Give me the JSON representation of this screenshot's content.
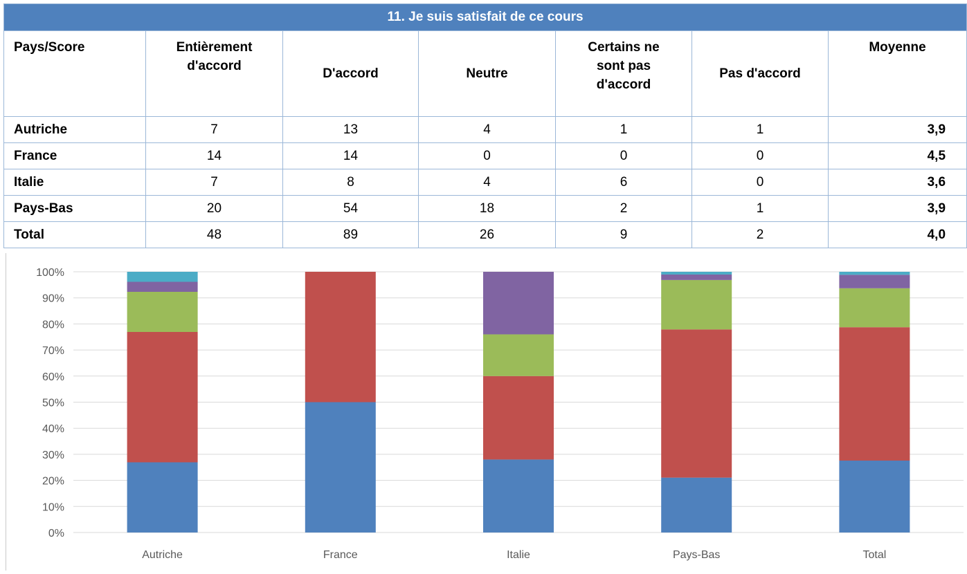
{
  "table": {
    "title": "11. Je suis satisfait de ce cours",
    "headers": [
      "Pays/Score",
      "Entièrement\nd'accord",
      "D'accord",
      "Neutre",
      "Certains ne\nsont pas\nd'accord",
      "Pas d'accord",
      "Moyenne"
    ],
    "rows": [
      {
        "country": "Autriche",
        "values": [
          "7",
          "13",
          "4",
          "1",
          "1"
        ],
        "avg": "3,9"
      },
      {
        "country": "France",
        "values": [
          "14",
          "14",
          "0",
          "0",
          "0"
        ],
        "avg": "4,5"
      },
      {
        "country": "Italie",
        "values": [
          "7",
          "8",
          "4",
          "6",
          "0"
        ],
        "avg": "3,6"
      },
      {
        "country": "Pays-Bas",
        "values": [
          "20",
          "54",
          "18",
          "2",
          "1"
        ],
        "avg": "3,9"
      },
      {
        "country": "Total",
        "values": [
          "48",
          "89",
          "26",
          "9",
          "2"
        ],
        "avg": "4,0"
      }
    ]
  },
  "chart_data": {
    "type": "bar",
    "stacked": true,
    "normalized": true,
    "categories": [
      "Autriche",
      "France",
      "Italie",
      "Pays-Bas",
      "Total"
    ],
    "series": [
      {
        "values": [
          7,
          14,
          7,
          20,
          48
        ],
        "color": "#4f81bd"
      },
      {
        "values": [
          13,
          14,
          8,
          54,
          89
        ],
        "color": "#c0504d"
      },
      {
        "values": [
          4,
          0,
          4,
          18,
          26
        ],
        "color": "#9bbb59"
      },
      {
        "values": [
          1,
          0,
          6,
          2,
          9
        ],
        "color": "#8064a2"
      },
      {
        "values": [
          1,
          0,
          0,
          1,
          2
        ],
        "color": "#4bacc6"
      }
    ],
    "yticks": [
      "0%",
      "10%",
      "20%",
      "30%",
      "40%",
      "50%",
      "60%",
      "70%",
      "80%",
      "90%",
      "100%"
    ],
    "ylim": [
      0,
      100
    ],
    "grid": true,
    "legend": "none"
  }
}
